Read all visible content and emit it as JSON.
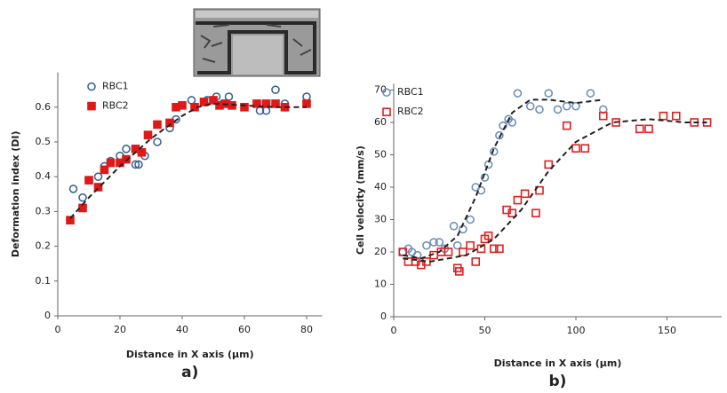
{
  "chart_data": [
    {
      "type": "scatter",
      "panel_label": "a)",
      "y_label": "Deformation index (DI)",
      "x_label": "Distance in X axis (µm)",
      "xlim": [
        0,
        85
      ],
      "xticks": [
        0,
        20,
        40,
        60,
        80
      ],
      "ylim": [
        0,
        0.7
      ],
      "yticks": [
        0,
        0.1,
        0.2,
        0.3,
        0.4,
        0.5,
        0.6
      ],
      "legend": "upper-left",
      "series": [
        {
          "name": "RBC1",
          "color": "#3c6496",
          "marker": "circle",
          "filled": false,
          "x": [
            5,
            8,
            10,
            13,
            15,
            17,
            20,
            22,
            25,
            26,
            28,
            32,
            36,
            38,
            43,
            48,
            51,
            53,
            55,
            65,
            67,
            70,
            73,
            80
          ],
          "values": [
            0.365,
            0.34,
            0.39,
            0.4,
            0.43,
            0.445,
            0.46,
            0.48,
            0.435,
            0.435,
            0.46,
            0.5,
            0.54,
            0.565,
            0.62,
            0.62,
            0.63,
            0.61,
            0.63,
            0.59,
            0.59,
            0.65,
            0.61,
            0.63
          ]
        },
        {
          "name": "RBC2",
          "color": "#e01818",
          "marker": "square",
          "filled": true,
          "x": [
            4,
            8,
            10,
            13,
            15,
            17,
            20,
            22,
            25,
            27,
            29,
            32,
            36,
            38,
            40,
            44,
            47,
            50,
            52,
            54,
            56,
            60,
            64,
            67,
            70,
            73,
            80
          ],
          "values": [
            0.275,
            0.31,
            0.39,
            0.37,
            0.42,
            0.44,
            0.44,
            0.45,
            0.48,
            0.47,
            0.52,
            0.55,
            0.555,
            0.6,
            0.605,
            0.6,
            0.615,
            0.62,
            0.605,
            0.61,
            0.605,
            0.6,
            0.61,
            0.61,
            0.61,
            0.6,
            0.61
          ]
        },
        {
          "color": "#222222",
          "marker": "dashed-line",
          "x": [
            4,
            10,
            20,
            30,
            40,
            45,
            50,
            60,
            70,
            80
          ],
          "values": [
            0.28,
            0.34,
            0.43,
            0.51,
            0.575,
            0.6,
            0.61,
            0.605,
            0.6,
            0.6
          ]
        }
      ]
    },
    {
      "type": "scatter",
      "panel_label": "b)",
      "y_label": "Cell velocity (mm/s)",
      "x_label": "Distance in X axis (µm)",
      "xlim": [
        0,
        180
      ],
      "xticks": [
        0,
        50,
        100,
        150
      ],
      "ylim": [
        0,
        72
      ],
      "yticks": [
        0,
        10,
        20,
        30,
        40,
        50,
        60,
        70
      ],
      "legend": "upper-left",
      "series": [
        {
          "name": "RBC1",
          "color": "#6f8fb8",
          "marker": "circle",
          "filled": false,
          "x": [
            5,
            8,
            10,
            13,
            18,
            22,
            25,
            28,
            33,
            35,
            38,
            42,
            45,
            48,
            50,
            52,
            55,
            58,
            60,
            63,
            65,
            68,
            75,
            80,
            85,
            90,
            95,
            100,
            108,
            115
          ],
          "values": [
            20,
            21,
            20,
            19,
            22,
            23,
            23,
            21,
            28,
            22,
            27,
            30,
            40,
            39,
            43,
            47,
            51,
            56,
            59,
            61,
            60,
            69,
            65,
            64,
            69,
            64,
            65,
            65,
            69,
            64
          ]
        },
        {
          "name": "RBC2",
          "color": "#e02020",
          "marker": "square",
          "filled": false,
          "x": [
            5,
            8,
            12,
            15,
            18,
            22,
            26,
            30,
            35,
            36,
            38,
            42,
            45,
            48,
            50,
            52,
            55,
            58,
            62,
            65,
            68,
            72,
            78,
            80,
            85,
            95,
            100,
            105,
            115,
            122,
            135,
            140,
            148,
            155,
            165,
            172
          ],
          "values": [
            20,
            17,
            17,
            16,
            17,
            19,
            20,
            20,
            15,
            14,
            20,
            22,
            17,
            21,
            24,
            25,
            21,
            21,
            33,
            32,
            36,
            38,
            32,
            39,
            47,
            59,
            52,
            52,
            62,
            60,
            58,
            58,
            62,
            62,
            60,
            60
          ]
        },
        {
          "color": "#222222",
          "marker": "dashed-line",
          "x": [
            5,
            15,
            25,
            35,
            45,
            55,
            65,
            75,
            85,
            100,
            115
          ],
          "values": [
            19,
            18,
            20,
            25,
            37,
            52,
            63,
            67,
            67,
            66,
            67
          ]
        },
        {
          "color": "#222222",
          "marker": "dashed-line",
          "x": [
            5,
            20,
            40,
            55,
            70,
            85,
            100,
            120,
            140,
            160,
            172
          ],
          "values": [
            18,
            17,
            19,
            24,
            33,
            45,
            54,
            60,
            61,
            60,
            60
          ]
        }
      ]
    }
  ]
}
